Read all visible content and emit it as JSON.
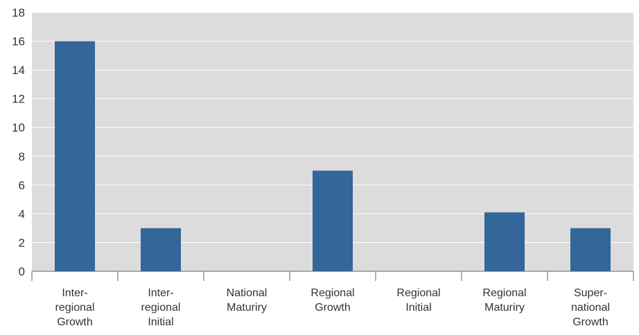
{
  "chart_data": {
    "type": "bar",
    "categories": [
      [
        "Inter-",
        "regional",
        "Growth"
      ],
      [
        "Inter-",
        "regional",
        "Initial"
      ],
      [
        "National",
        "Maturiry"
      ],
      [
        "Regional",
        "Growth"
      ],
      [
        "Regional",
        "Initial"
      ],
      [
        "Regional",
        "Maturiry"
      ],
      [
        "Super-",
        "national",
        "Growth"
      ]
    ],
    "values": [
      16,
      3,
      0,
      7,
      0,
      4.1,
      3
    ],
    "ylim": [
      0,
      18
    ],
    "yticks": [
      "0",
      "2",
      "4",
      "6",
      "8",
      "10",
      "12",
      "14",
      "16",
      "18"
    ],
    "grid": true,
    "colors": {
      "bar": "#336699",
      "plot_background": "#dcdcdc",
      "gridline": "#ffffff",
      "axis": "#666666",
      "text": "#333333"
    }
  }
}
